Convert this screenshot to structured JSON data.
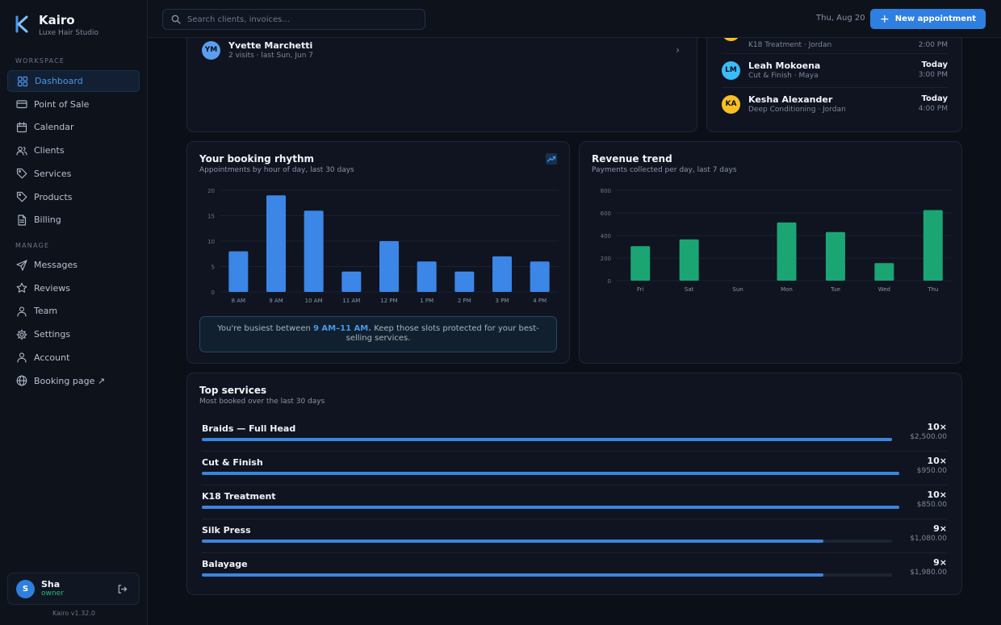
{
  "app": {
    "name": "Kairo",
    "subtitle": "Luxe Hair Studio",
    "version": "Kairo v1.32.0"
  },
  "sidebar": {
    "workspace_label": "WORKSPACE",
    "manage_label": "MANAGE",
    "workspace": [
      {
        "label": "Dashboard",
        "icon": "grid-icon",
        "active": true
      },
      {
        "label": "Point of Sale",
        "icon": "card-icon"
      },
      {
        "label": "Calendar",
        "icon": "calendar-icon"
      },
      {
        "label": "Clients",
        "icon": "users-icon"
      },
      {
        "label": "Services",
        "icon": "tag-icon"
      },
      {
        "label": "Products",
        "icon": "tag-icon"
      },
      {
        "label": "Billing",
        "icon": "file-icon"
      }
    ],
    "manage": [
      {
        "label": "Messages",
        "icon": "send-icon"
      },
      {
        "label": "Reviews",
        "icon": "star-icon"
      },
      {
        "label": "Team",
        "icon": "user-icon"
      },
      {
        "label": "Settings",
        "icon": "gear-icon"
      },
      {
        "label": "Account",
        "icon": "user-icon"
      },
      {
        "label": "Booking page ↗",
        "icon": "globe-icon"
      }
    ],
    "user": {
      "initial": "S",
      "name": "Sha",
      "role": "owner"
    }
  },
  "topbar": {
    "search_placeholder": "Search clients, invoices...",
    "date": "Thu, Aug 20",
    "new_button": "New appointment"
  },
  "recent_client": {
    "initials": "YM",
    "name": "Yvette Marchetti",
    "meta": "2 visits · last Sun, Jun 7"
  },
  "upcoming": {
    "partial": {
      "service": "K18 Treatment · Jordan",
      "time": "2:00 PM"
    },
    "items": [
      {
        "initials": "LM",
        "name": "Leah Mokoena",
        "service": "Cut & Finish · Maya",
        "day": "Today",
        "time": "3:00 PM",
        "color": "#38bdf8"
      },
      {
        "initials": "KA",
        "name": "Kesha Alexander",
        "service": "Deep Conditioning · Jordan",
        "day": "Today",
        "time": "4:00 PM",
        "color": "#fbbf24"
      }
    ]
  },
  "booking_rhythm": {
    "title": "Your booking rhythm",
    "subtitle": "Appointments by hour of day, last 30 days",
    "insight_pre": "You're busiest between ",
    "insight_hl": "9 AM–11 AM.",
    "insight_post": " Keep those slots protected for your best-selling services."
  },
  "revenue_trend": {
    "title": "Revenue trend",
    "subtitle": "Payments collected per day, last 7 days"
  },
  "top_services": {
    "title": "Top services",
    "subtitle": "Most booked over the last 30 days",
    "items": [
      {
        "name": "Braids — Full Head",
        "count": "10×",
        "revenue": "$2,500.00",
        "share": 1.0
      },
      {
        "name": "Cut & Finish",
        "count": "10×",
        "revenue": "$950.00",
        "share": 1.0
      },
      {
        "name": "K18 Treatment",
        "count": "10×",
        "revenue": "$850.00",
        "share": 1.0
      },
      {
        "name": "Silk Press",
        "count": "9×",
        "revenue": "$1,080.00",
        "share": 0.9
      },
      {
        "name": "Balayage",
        "count": "9×",
        "revenue": "$1,980.00",
        "share": 0.9
      }
    ]
  },
  "chart_data": [
    {
      "type": "bar",
      "categories": [
        "8 AM",
        "9 AM",
        "10 AM",
        "11 AM",
        "12 PM",
        "1 PM",
        "2 PM",
        "3 PM",
        "4 PM"
      ],
      "values": [
        8,
        19,
        16,
        4,
        10,
        6,
        4,
        7,
        6
      ],
      "yticks": [
        0,
        5,
        10,
        15,
        20
      ],
      "ylim": [
        0,
        20
      ],
      "color": "#3b86e6",
      "grid": true
    },
    {
      "type": "bar",
      "categories": [
        "Fri",
        "Sat",
        "Sun",
        "Mon",
        "Tue",
        "Wed",
        "Thu"
      ],
      "values": [
        305,
        365,
        0,
        515,
        430,
        155,
        625
      ],
      "yticks": [
        0,
        200,
        400,
        600,
        800
      ],
      "ylim": [
        0,
        800
      ],
      "color": "#1ba572",
      "grid": true
    }
  ]
}
